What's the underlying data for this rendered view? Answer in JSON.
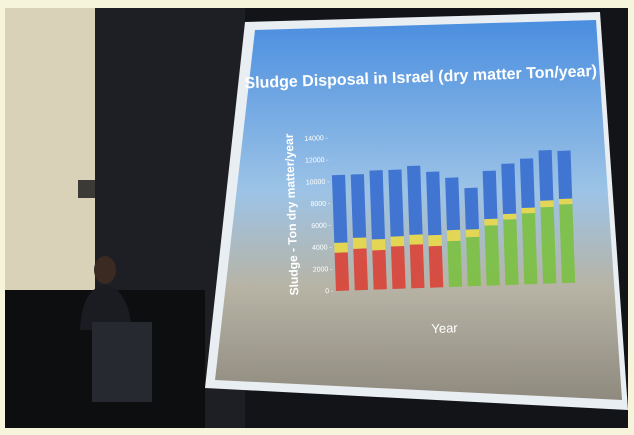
{
  "chart_data": {
    "type": "bar",
    "title": "Sludge Disposal in Israel (dry matter Ton/year)",
    "y_label": "Sludge - Ton dry matter/year",
    "x_label": "Year",
    "ylim": [
      0,
      14000
    ],
    "yticks": [
      0,
      2000,
      4000,
      6000,
      8000,
      10000,
      12000,
      14000
    ],
    "stacked": true,
    "series": [
      {
        "color": "#d9443a",
        "values": [
          3500,
          3800,
          3600,
          3900,
          4000,
          3800,
          0,
          0,
          0,
          0,
          0,
          0,
          0
        ]
      },
      {
        "color": "#7cc043",
        "values": [
          0,
          0,
          0,
          0,
          0,
          0,
          4200,
          4500,
          5500,
          6000,
          6500,
          7000,
          7200
        ]
      },
      {
        "color": "#e8d84a",
        "values": [
          900,
          1000,
          1000,
          900,
          900,
          1000,
          1000,
          700,
          600,
          500,
          500,
          600,
          500
        ]
      },
      {
        "color": "#3a6fd0",
        "values": [
          6200,
          5800,
          6300,
          6100,
          6300,
          5800,
          4800,
          3800,
          4400,
          4600,
          4500,
          4600,
          4400
        ]
      }
    ]
  }
}
